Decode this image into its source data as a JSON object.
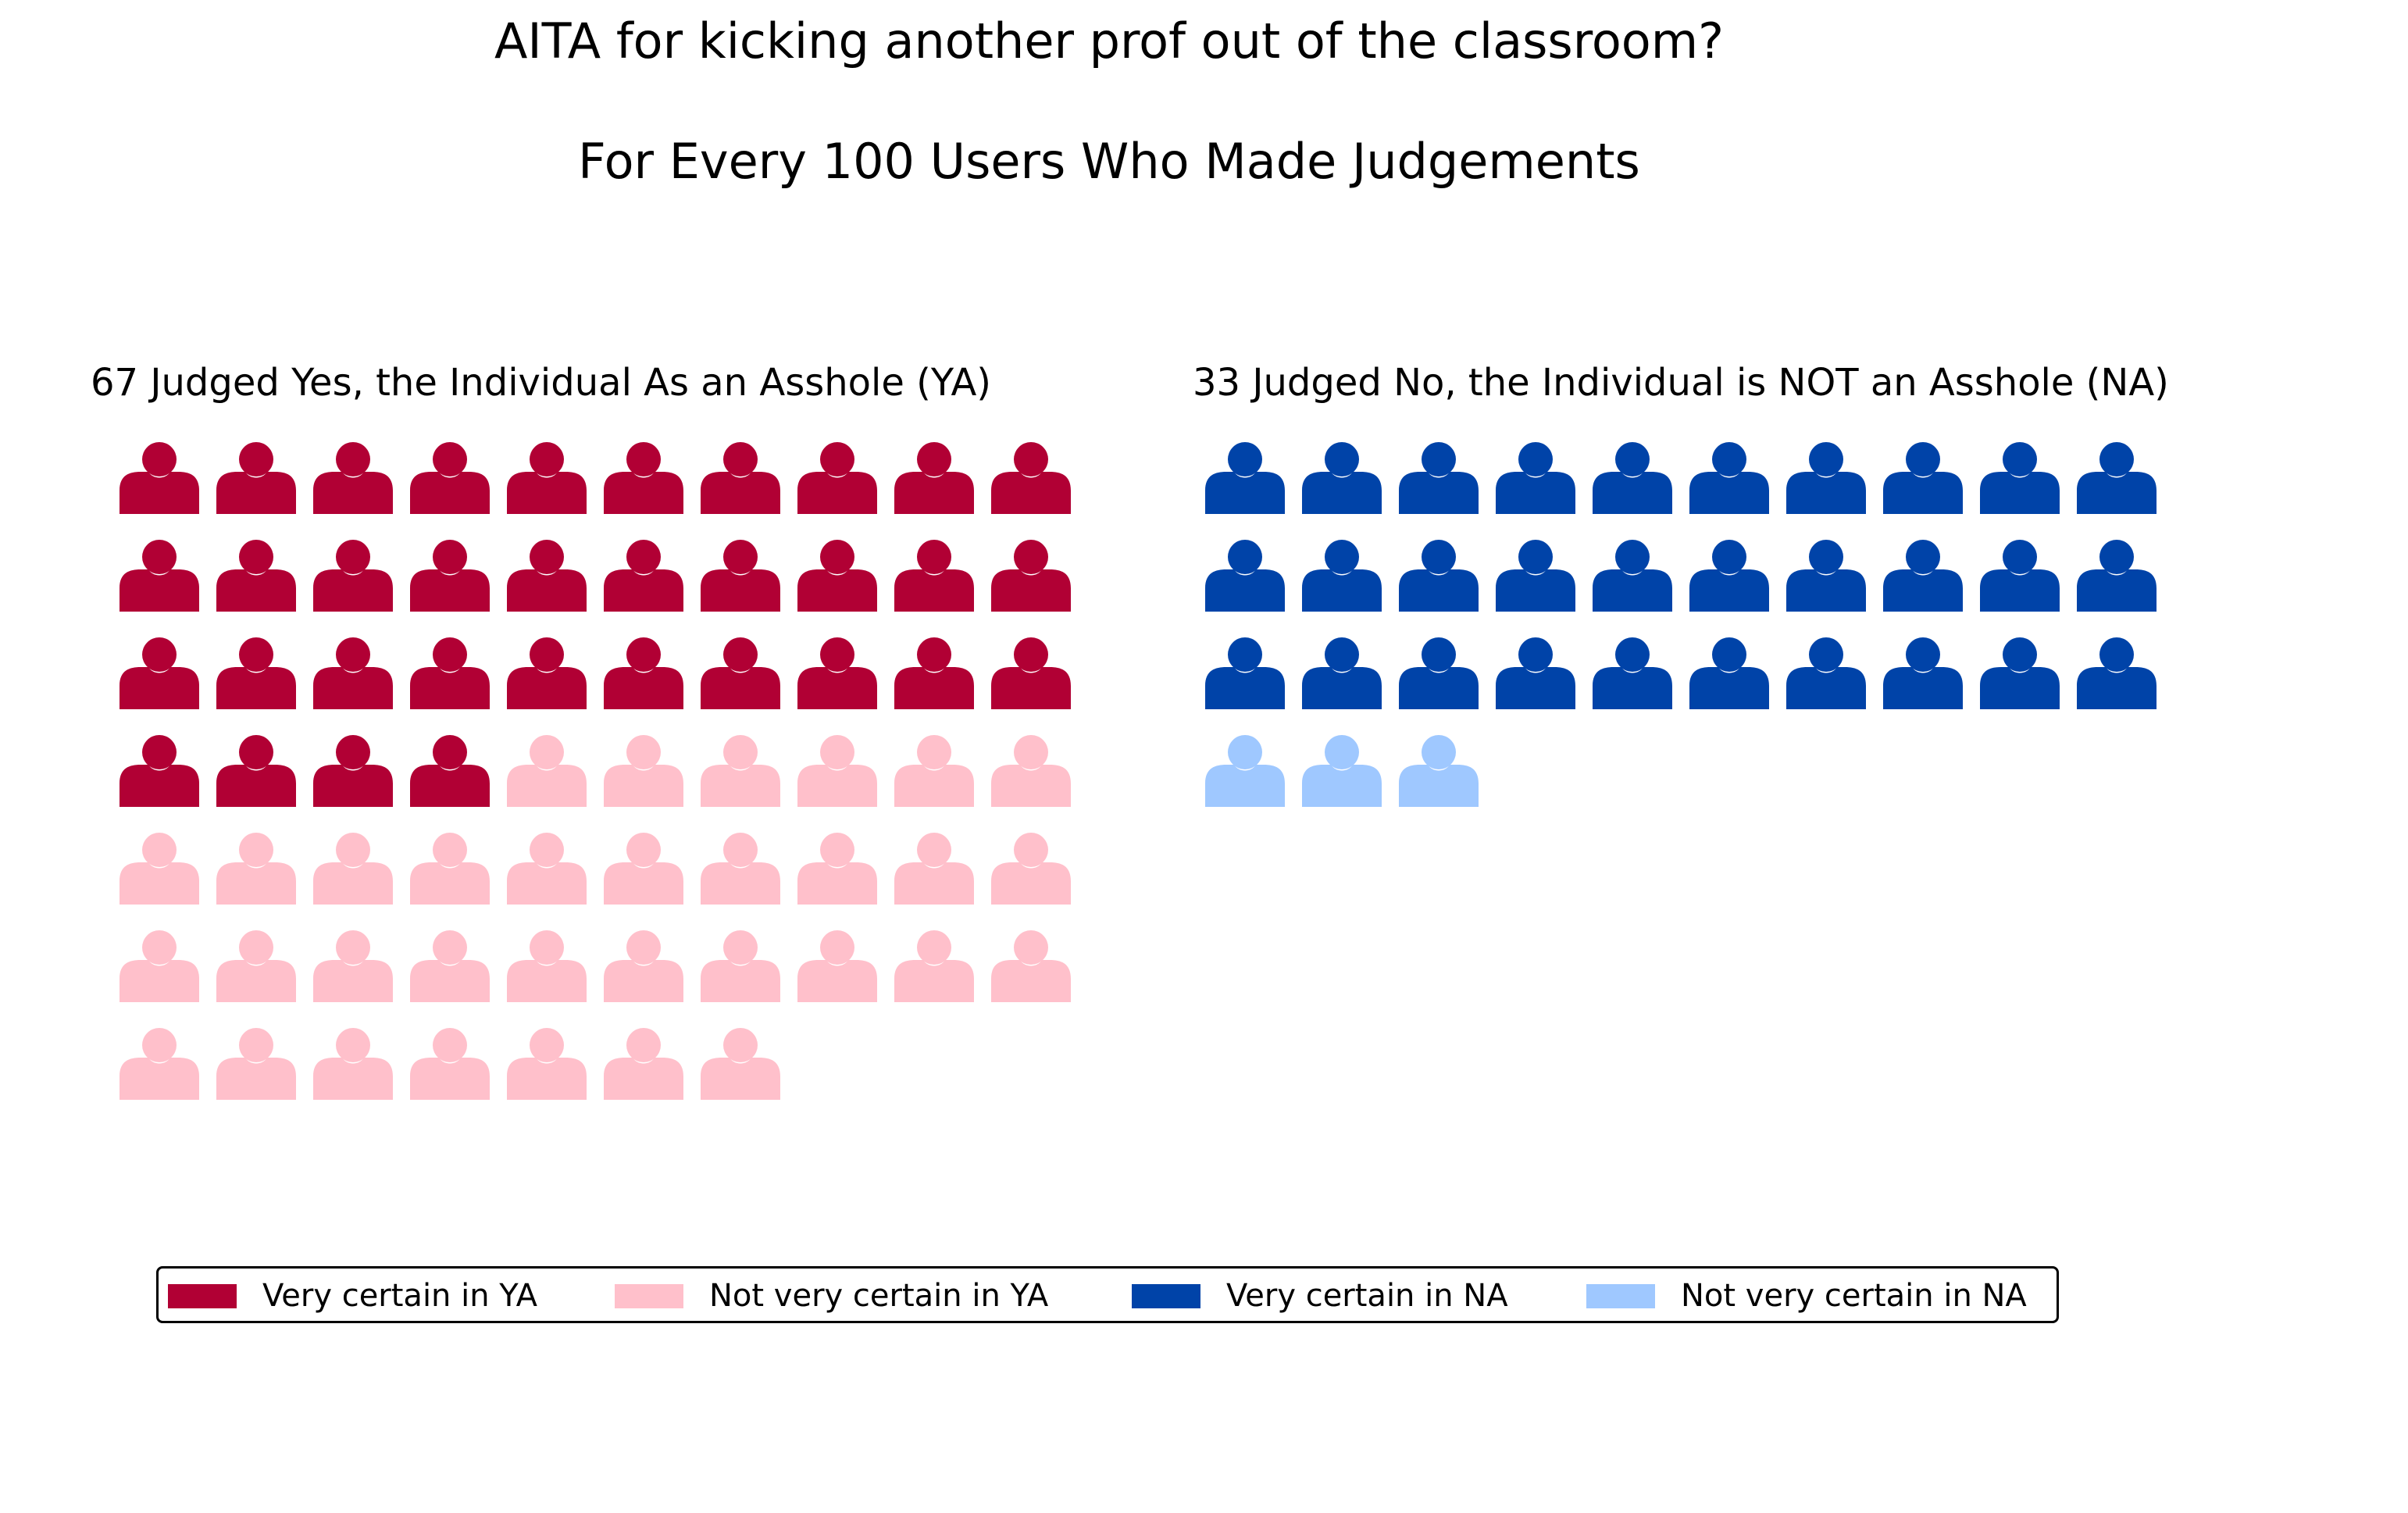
{
  "chart_data": {
    "type": "waffle",
    "title": "AITA for kicking another prof out of the classroom?",
    "subtitle": "For Every 100 Users Who Made Judgements",
    "icon": "person-icon",
    "columns": 10,
    "panels": [
      {
        "title": "67 Judged Yes, the Individual As an Asshole (YA)",
        "total": 67,
        "segments": [
          {
            "name": "Very certain in YA",
            "count": 34,
            "color": "#b10034"
          },
          {
            "name": "Not very certain in YA",
            "count": 33,
            "color": "#ffc0cb"
          }
        ]
      },
      {
        "title": "33 Judged No, the Individual is NOT an Asshole (NA)",
        "total": 33,
        "segments": [
          {
            "name": "Very certain in NA",
            "count": 30,
            "color": "#0043a8"
          },
          {
            "name": "Not very certain in NA",
            "count": 3,
            "color": "#9fc8ff"
          }
        ]
      }
    ],
    "legend": {
      "placement": "bottom",
      "entries": [
        {
          "label": "Very certain in YA",
          "color": "#b10034"
        },
        {
          "label": "Not very certain in YA",
          "color": "#ffc0cb"
        },
        {
          "label": "Very certain in NA",
          "color": "#0043a8"
        },
        {
          "label": "Not very certain in NA",
          "color": "#9fc8ff"
        }
      ]
    }
  }
}
